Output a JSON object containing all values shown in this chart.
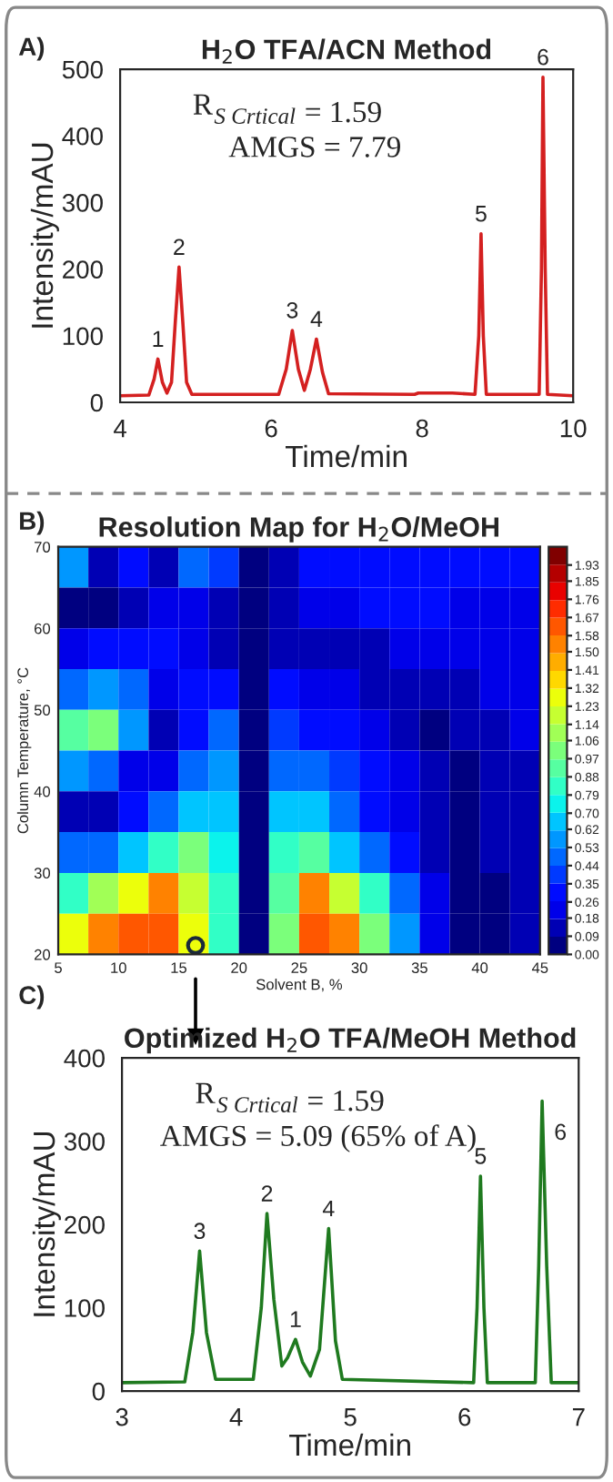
{
  "chart_data": [
    {
      "type": "line",
      "title": "H$_{2}$O TFA/ACN Method",
      "xlabel": "Time/min",
      "ylabel": "Intensity/mAU",
      "xlim": [
        4,
        10
      ],
      "xticks": [
        4,
        6,
        8,
        10
      ],
      "ylim": [
        0,
        500
      ],
      "yticks": [
        0,
        100,
        200,
        300,
        400,
        500
      ],
      "grid": false,
      "legend": false,
      "series": [
        {
          "color": "#d42020",
          "x": [
            4.0,
            4.38,
            4.45,
            4.5,
            4.56,
            4.62,
            4.68,
            4.73,
            4.78,
            4.83,
            4.88,
            4.95,
            6.1,
            6.2,
            6.28,
            6.36,
            6.44,
            6.52,
            6.6,
            6.68,
            6.76,
            7.9,
            7.95,
            8.4,
            8.7,
            8.75,
            8.78,
            8.81,
            8.85,
            9.55,
            9.58,
            9.6,
            9.63,
            9.66,
            10.0
          ],
          "values": [
            10,
            11,
            35,
            65,
            30,
            14,
            30,
            120,
            203,
            120,
            30,
            12,
            12,
            50,
            108,
            50,
            18,
            50,
            95,
            45,
            13,
            12,
            14,
            14,
            12,
            100,
            253,
            100,
            12,
            12,
            200,
            488,
            200,
            12,
            10
          ]
        }
      ],
      "annotations": [
        "A)",
        {
          "text": "1",
          "x": 4.5,
          "y": 65
        },
        {
          "text": "2",
          "x": 4.78,
          "y": 203
        },
        {
          "text": "3",
          "x": 6.28,
          "y": 108
        },
        {
          "text": "4",
          "x": 6.6,
          "y": 95
        },
        {
          "text": "5",
          "x": 8.78,
          "y": 253
        },
        {
          "text": "6",
          "x": 9.6,
          "y": 488
        },
        "R$_{S Crtical}$ = 1.59",
        "AMGS = 7.79"
      ]
    },
    {
      "type": "heatmap",
      "title": "Resolution Map for H$_{2}$O/MeOH",
      "xlabel": "Solvent B, %",
      "ylabel": "Column Temperature, °C",
      "x": [
        6.25,
        8.75,
        11.25,
        13.75,
        16.25,
        18.75,
        21.25,
        23.75,
        26.25,
        28.75,
        31.25,
        33.75,
        36.25,
        38.75,
        41.25,
        43.75
      ],
      "y": [
        67.5,
        62.5,
        57.5,
        52.5,
        47.5,
        42.5,
        37.5,
        32.5,
        27.5,
        22.5
      ],
      "xlim": [
        5,
        45
      ],
      "xticks": [
        5,
        10,
        15,
        20,
        25,
        30,
        35,
        40,
        45
      ],
      "ylim": [
        20,
        70
      ],
      "yticks": [
        20,
        30,
        40,
        50,
        60,
        70
      ],
      "clim": [
        0,
        2.02
      ],
      "cticks": [
        {
          "value": 0,
          "label": "0.00"
        },
        0.09,
        0.18,
        0.26,
        0.35,
        0.44,
        0.53,
        0.62,
        {
          "value": 0.7,
          "label": "0.70"
        },
        0.79,
        0.88,
        0.97,
        1.06,
        1.14,
        1.23,
        1.32,
        1.41,
        {
          "value": 1.5,
          "label": "1.50"
        },
        1.58,
        1.67,
        1.76,
        1.85,
        1.93
      ],
      "cells": [
        [
          0.6,
          0.15,
          0.35,
          0.1,
          0.5,
          0.4,
          0.05,
          0.15,
          0.35,
          0.35,
          0.3,
          0.3,
          0.3,
          0.3,
          0.3,
          0.3
        ],
        [
          0.05,
          0.05,
          0.15,
          0.2,
          0.2,
          0.15,
          0.05,
          0.15,
          0.2,
          0.25,
          0.3,
          0.3,
          0.3,
          0.25,
          0.25,
          0.25
        ],
        [
          0.2,
          0.35,
          0.35,
          0.3,
          0.2,
          0.15,
          0.05,
          0.1,
          0.1,
          0.1,
          0.15,
          0.2,
          0.2,
          0.25,
          0.25,
          0.25
        ],
        [
          0.45,
          0.6,
          0.5,
          0.2,
          0.3,
          0.35,
          0.05,
          0.3,
          0.25,
          0.2,
          0.15,
          0.1,
          0.1,
          0.15,
          0.2,
          0.2
        ],
        [
          0.9,
          1.0,
          0.6,
          0.15,
          0.35,
          0.45,
          0.05,
          0.4,
          0.35,
          0.3,
          0.2,
          0.15,
          0.08,
          0.1,
          0.15,
          0.2
        ],
        [
          0.6,
          0.5,
          0.2,
          0.2,
          0.5,
          0.55,
          0.05,
          0.5,
          0.5,
          0.4,
          0.3,
          0.2,
          0.1,
          0.05,
          0.1,
          0.15
        ],
        [
          0.15,
          0.1,
          0.3,
          0.45,
          0.7,
          0.65,
          0.05,
          0.65,
          0.65,
          0.5,
          0.35,
          0.25,
          0.12,
          0.05,
          0.1,
          0.15
        ],
        [
          0.45,
          0.5,
          0.65,
          0.8,
          1.0,
          0.75,
          0.05,
          0.8,
          0.9,
          0.7,
          0.5,
          0.3,
          0.15,
          0.05,
          0.1,
          0.15
        ],
        [
          0.85,
          1.1,
          1.3,
          1.5,
          1.2,
          0.8,
          0.05,
          0.9,
          1.5,
          1.2,
          0.8,
          0.45,
          0.2,
          0.05,
          0.08,
          0.15
        ],
        [
          1.3,
          1.5,
          1.6,
          1.6,
          1.3,
          0.85,
          0.05,
          1.0,
          1.6,
          1.5,
          1.0,
          0.55,
          0.25,
          0.05,
          0.05,
          0.15
        ]
      ],
      "annotations": [
        "B)"
      ]
    },
    {
      "type": "line",
      "title": "Optimized H$_{2}$O TFA/MeOH Method",
      "xlabel": "Time/min",
      "ylabel": "Intensity/mAU",
      "xlim": [
        3,
        7
      ],
      "xticks": [
        3,
        4,
        5,
        6,
        7
      ],
      "ylim": [
        0,
        400
      ],
      "yticks": [
        0,
        100,
        200,
        300,
        400
      ],
      "grid": false,
      "legend": false,
      "series": [
        {
          "color": "#1f7a1f",
          "x": [
            3.0,
            3.55,
            3.62,
            3.68,
            3.74,
            3.82,
            4.15,
            4.22,
            4.27,
            4.33,
            4.4,
            4.45,
            4.52,
            4.58,
            4.65,
            4.73,
            4.81,
            4.87,
            4.93,
            6.08,
            6.11,
            6.14,
            6.17,
            6.2,
            6.62,
            6.65,
            6.68,
            6.72,
            6.76,
            7.0
          ],
          "values": [
            10,
            11,
            70,
            168,
            70,
            14,
            14,
            100,
            213,
            110,
            30,
            40,
            62,
            35,
            18,
            50,
            195,
            60,
            14,
            10,
            100,
            258,
            100,
            10,
            10,
            150,
            348,
            150,
            10,
            10
          ]
        }
      ],
      "annotations": [
        "C)",
        {
          "text": "3",
          "x": 3.68,
          "y": 168
        },
        {
          "text": "2",
          "x": 4.27,
          "y": 213
        },
        {
          "text": "1",
          "x": 4.52,
          "y": 62
        },
        {
          "text": "4",
          "x": 4.81,
          "y": 195
        },
        {
          "text": "5",
          "x": 6.14,
          "y": 258
        },
        "R$_{S Crtical}$ = 1.59",
        "AMGS = 5.09 (65% of A)",
        "6"
      ]
    }
  ]
}
